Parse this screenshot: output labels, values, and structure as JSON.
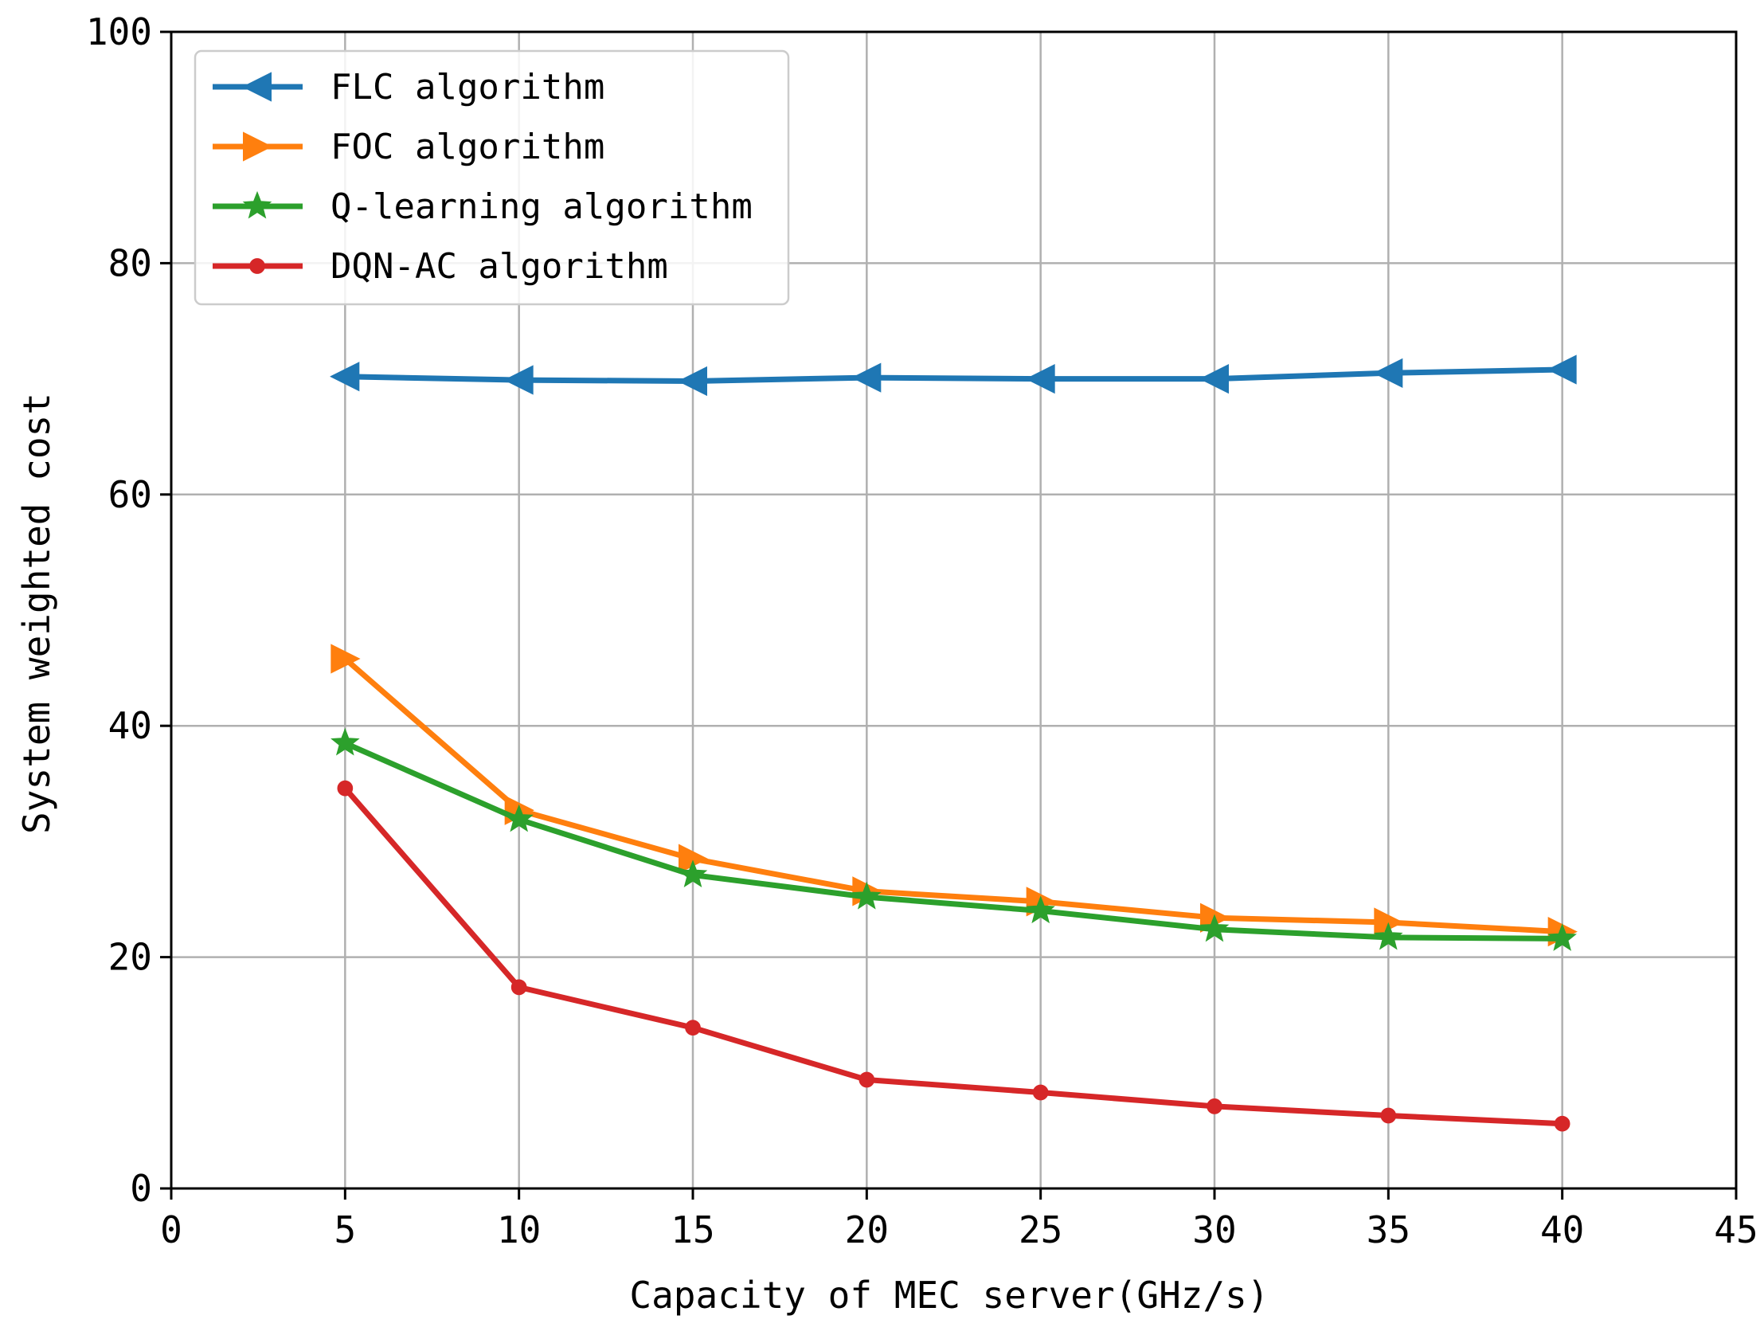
{
  "chart_data": {
    "type": "line",
    "title": "",
    "xlabel": "Capacity of MEC server(GHz/s)",
    "ylabel": "System weighted cost",
    "xlim": [
      0,
      45
    ],
    "ylim": [
      0,
      100
    ],
    "xticks": [
      0,
      5,
      10,
      15,
      20,
      25,
      30,
      35,
      40,
      45
    ],
    "yticks": [
      0,
      20,
      40,
      60,
      80,
      100
    ],
    "grid": true,
    "legend_position": "top-left",
    "x": [
      5,
      10,
      15,
      20,
      25,
      30,
      35,
      40
    ],
    "series": [
      {
        "name": "FLC algorithm",
        "marker": "triangle-left",
        "color": "#1f77b4",
        "values": [
          70.2,
          69.9,
          69.8,
          70.1,
          70.0,
          70.0,
          70.5,
          70.8
        ]
      },
      {
        "name": "FOC algorithm",
        "marker": "triangle-right",
        "color": "#ff7f0e",
        "values": [
          45.8,
          32.7,
          28.5,
          25.7,
          24.8,
          23.4,
          23.0,
          22.2
        ]
      },
      {
        "name": "Q-learning algorithm",
        "marker": "star",
        "color": "#2ca02c",
        "values": [
          38.5,
          31.9,
          27.1,
          25.2,
          24.0,
          22.4,
          21.7,
          21.6
        ]
      },
      {
        "name": "DQN-AC algorithm",
        "marker": "circle",
        "color": "#d62728",
        "values": [
          34.6,
          17.4,
          13.9,
          9.4,
          8.3,
          7.1,
          6.3,
          5.6
        ]
      }
    ]
  }
}
